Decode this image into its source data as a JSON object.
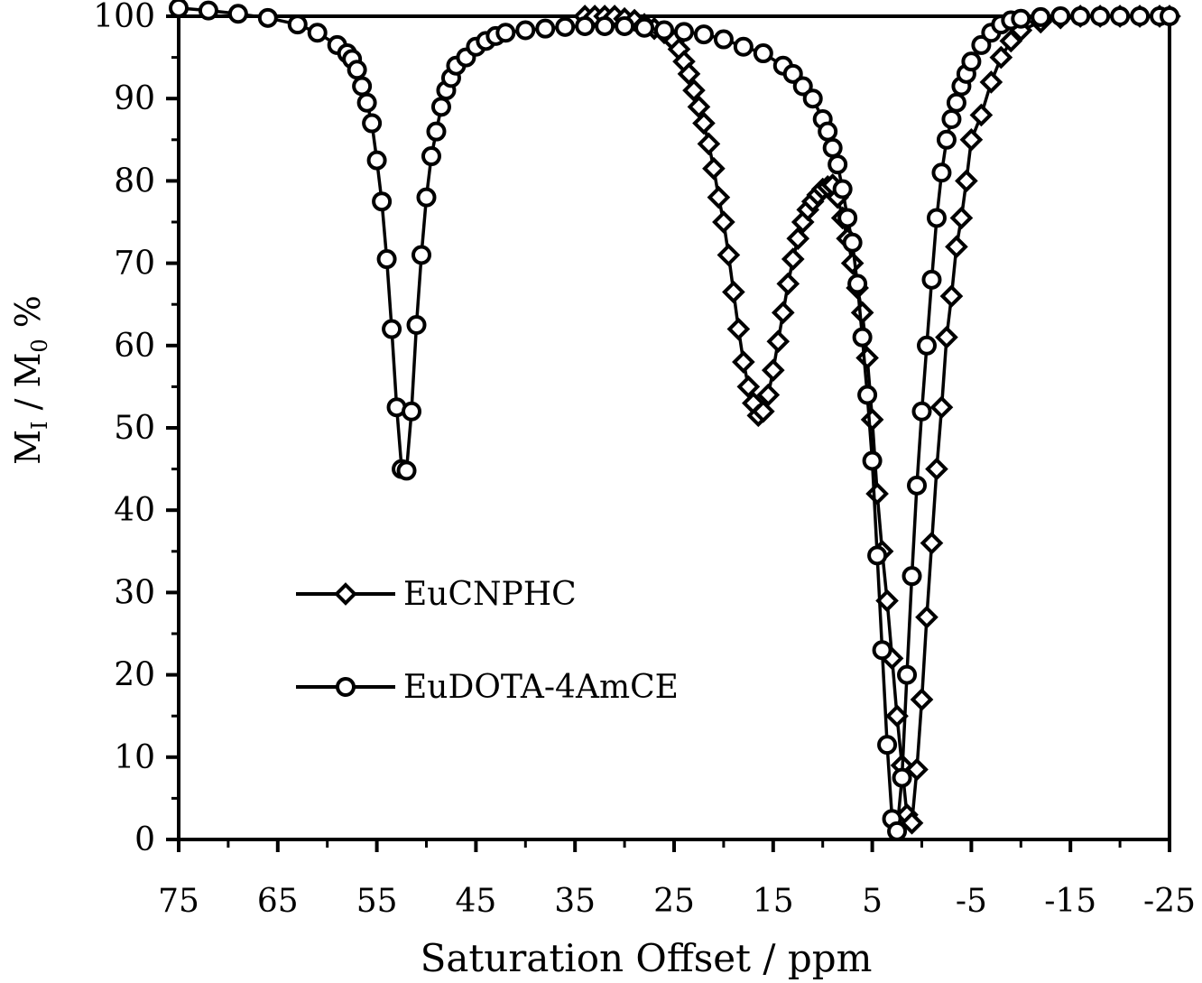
{
  "chart_data": {
    "type": "line",
    "xlabel": "Saturation Offset / ppm",
    "ylabel": {
      "base": "M",
      "numerator_sub": "I",
      "separator": " / ",
      "denominator_base": "M",
      "denominator_sub": "0",
      "suffix": " %"
    },
    "xlim": [
      75,
      -25
    ],
    "ylim": [
      0,
      100
    ],
    "xticks": [
      75,
      65,
      55,
      45,
      35,
      25,
      15,
      5,
      -5,
      -15,
      -25
    ],
    "xtick_labels": [
      "75",
      "65",
      "55",
      "45",
      "35",
      "25",
      "15",
      "5",
      "-5",
      "-15",
      "-25"
    ],
    "yticks": [
      0,
      10,
      20,
      30,
      40,
      50,
      60,
      70,
      80,
      90,
      100
    ],
    "ytick_labels": [
      "0",
      "10",
      "20",
      "30",
      "40",
      "50",
      "60",
      "70",
      "80",
      "90",
      "100"
    ],
    "grid": false,
    "legend_position": "lower-left",
    "series": [
      {
        "name": "EuCNPHC",
        "marker": "diamond",
        "color": "#000000",
        "x": [
          34,
          33,
          32,
          31,
          30,
          29,
          28,
          27,
          26,
          25,
          24.5,
          24,
          23.5,
          23,
          22.5,
          22,
          21.5,
          21,
          20.5,
          20,
          19.5,
          19,
          18.5,
          18,
          17.5,
          17,
          16.5,
          16,
          15.5,
          15,
          14.5,
          14,
          13.5,
          13,
          12.5,
          12,
          11.5,
          11,
          10.5,
          10,
          9.5,
          9,
          8.5,
          8,
          7.5,
          7,
          6.5,
          6,
          5.5,
          5,
          4.5,
          4,
          3.5,
          3,
          2.5,
          2,
          1.5,
          1,
          0.5,
          0,
          -0.5,
          -1,
          -1.5,
          -2,
          -2.5,
          -3,
          -3.5,
          -4,
          -4.5,
          -5,
          -6,
          -7,
          -8,
          -9,
          -10,
          -12,
          -14,
          -16,
          -18,
          -20,
          -22,
          -24,
          -25
        ],
        "y": [
          100,
          100,
          100,
          100,
          99.7,
          99.5,
          99,
          98.5,
          98,
          97,
          96,
          94.5,
          93,
          91,
          89,
          87,
          84.5,
          81.5,
          78,
          75,
          71,
          66.5,
          62,
          58,
          55,
          53,
          51.5,
          52,
          54,
          57,
          60.5,
          64,
          67.5,
          70.5,
          73,
          75,
          76.5,
          77.5,
          78.3,
          79,
          79.3,
          79.5,
          78,
          75.5,
          73,
          70,
          67,
          64,
          58.5,
          51,
          42,
          35,
          29,
          22,
          15,
          9,
          3,
          2,
          8.5,
          17,
          27,
          36,
          45,
          52.5,
          61,
          66,
          72,
          75.5,
          80,
          85,
          88,
          92,
          95,
          97,
          98.3,
          99.3,
          99.8,
          100,
          100,
          100,
          100,
          100,
          100
        ]
      },
      {
        "name": "EuDOTA-4AmCE",
        "marker": "circle",
        "color": "#000000",
        "x": [
          75,
          72,
          69,
          66,
          63,
          61,
          59,
          58,
          57.5,
          57,
          56.5,
          56,
          55.5,
          55,
          54.5,
          54,
          53.5,
          53,
          52.5,
          52,
          51.5,
          51,
          50.5,
          50,
          49.5,
          49,
          48.5,
          48,
          47.5,
          47,
          46,
          45,
          44,
          43,
          42,
          40,
          38,
          36,
          34,
          32,
          30,
          28,
          26,
          24,
          22,
          20,
          18,
          16,
          14,
          13,
          12,
          11,
          10,
          9.5,
          9,
          8.5,
          8,
          7.5,
          7,
          6.5,
          6,
          5.5,
          5,
          4.5,
          4,
          3.5,
          3,
          2.5,
          2,
          1.5,
          1,
          0.5,
          0,
          -0.5,
          -1,
          -1.5,
          -2,
          -2.5,
          -3,
          -3.5,
          -4,
          -4.5,
          -5,
          -6,
          -7,
          -8,
          -9,
          -10,
          -12,
          -14,
          -16,
          -18,
          -20,
          -22,
          -24,
          -25
        ],
        "y": [
          101,
          100.7,
          100.3,
          99.8,
          99,
          98,
          96.5,
          95.5,
          94.8,
          93.5,
          91.5,
          89.5,
          87,
          82.5,
          77.5,
          70.5,
          62,
          52.5,
          45,
          44.8,
          52,
          62.5,
          71,
          78,
          83,
          86,
          89,
          91,
          92.5,
          94,
          95,
          96.3,
          97,
          97.6,
          98,
          98.3,
          98.5,
          98.7,
          98.8,
          98.8,
          98.8,
          98.6,
          98.3,
          98.1,
          97.8,
          97.2,
          96.3,
          95.5,
          94,
          93,
          91.5,
          90,
          87.5,
          86,
          84,
          82,
          79,
          75.5,
          72.5,
          67.5,
          61,
          54,
          46,
          34.5,
          23,
          11.5,
          2.5,
          1,
          7.5,
          20,
          32,
          43,
          52,
          60,
          68,
          75.5,
          81,
          85,
          87.5,
          89.5,
          91.5,
          93,
          94.5,
          96.5,
          98,
          99,
          99.5,
          99.7,
          99.9,
          100,
          100,
          100,
          100,
          100,
          100,
          100
        ]
      }
    ]
  }
}
